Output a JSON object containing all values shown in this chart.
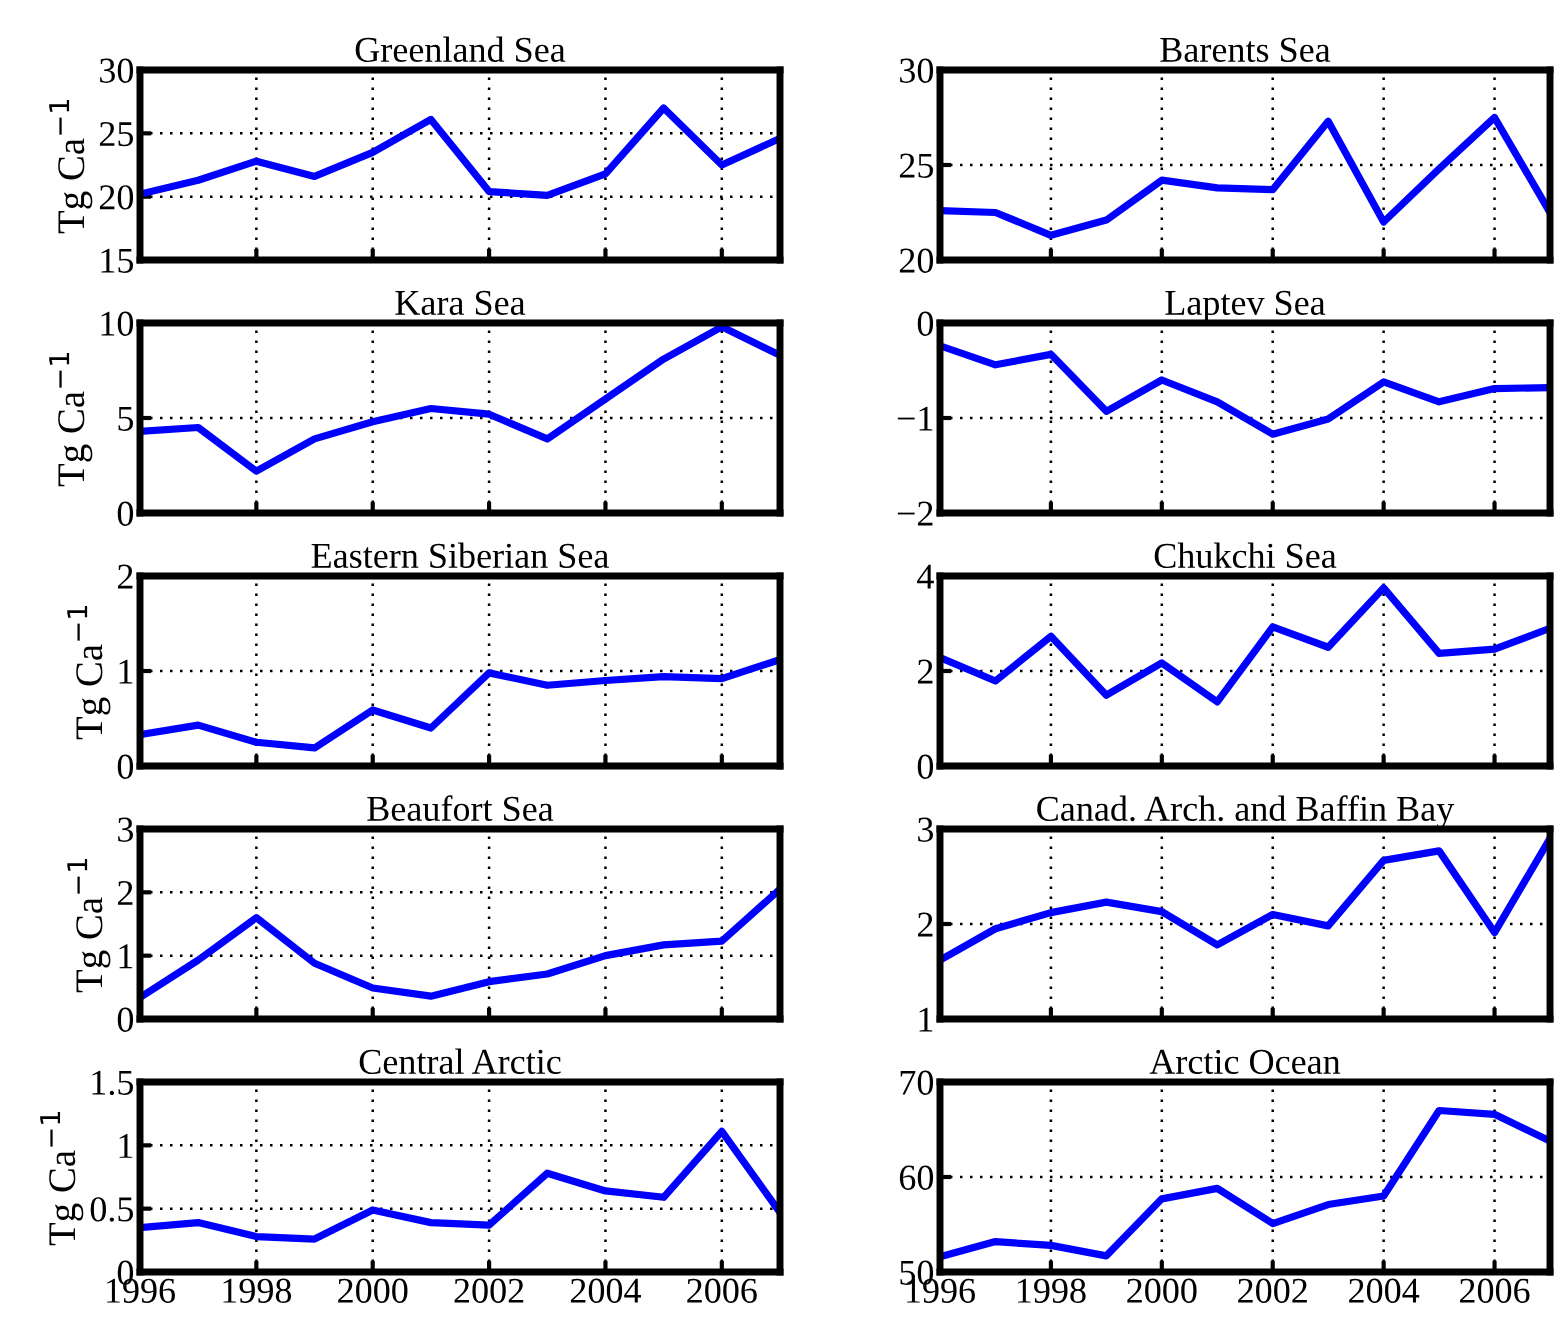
{
  "chart_data": [
    {
      "type": "line",
      "title": "Greenland Sea",
      "ylabel": "Tg Ca$^{−1}$",
      "x": [
        1996,
        1997,
        1998,
        1999,
        2000,
        2001,
        2002,
        2003,
        2004,
        2005,
        2006,
        2007
      ],
      "series": [
        {
          "color": "#0000ff",
          "values": [
            20.2,
            21.3,
            22.8,
            21.6,
            23.5,
            26.1,
            20.4,
            20.1,
            21.8,
            27.0,
            22.5,
            24.6
          ]
        }
      ],
      "xlim": [
        1996,
        2007
      ],
      "xticks": [
        1996,
        1998,
        2000,
        2002,
        2004,
        2006
      ],
      "ylim": [
        15,
        30
      ],
      "yticks": [
        15,
        20,
        25,
        30
      ],
      "grid": true,
      "tick_labels": "y",
      "line_style": "solid",
      "marker": "none"
    },
    {
      "type": "line",
      "title": "Barents Sea",
      "x": [
        1996,
        1997,
        1998,
        1999,
        2000,
        2001,
        2002,
        2003,
        2004,
        2005,
        2006,
        2007
      ],
      "series": [
        {
          "color": "#0000ff",
          "values": [
            22.6,
            22.5,
            21.3,
            22.1,
            24.2,
            23.8,
            23.7,
            27.3,
            22.0,
            24.8,
            27.5,
            22.5
          ]
        }
      ],
      "xlim": [
        1996,
        2007
      ],
      "xticks": [
        1996,
        1998,
        2000,
        2002,
        2004,
        2006
      ],
      "ylim": [
        20,
        30
      ],
      "yticks": [
        20,
        25,
        30
      ],
      "grid": true,
      "tick_labels": "y",
      "line_style": "solid",
      "marker": "none"
    },
    {
      "type": "line",
      "title": "Kara Sea",
      "ylabel": "Tg Ca$^{−1}$",
      "x": [
        1996,
        1997,
        1998,
        1999,
        2000,
        2001,
        2002,
        2003,
        2004,
        2005,
        2006,
        2007
      ],
      "series": [
        {
          "color": "#0000ff",
          "values": [
            4.3,
            4.5,
            2.2,
            3.9,
            4.8,
            5.5,
            5.2,
            3.9,
            6.0,
            8.1,
            9.8,
            8.3
          ]
        }
      ],
      "xlim": [
        1996,
        2007
      ],
      "xticks": [
        1996,
        1998,
        2000,
        2002,
        2004,
        2006
      ],
      "ylim": [
        0,
        10
      ],
      "yticks": [
        0,
        5,
        10
      ],
      "grid": true,
      "tick_labels": "y",
      "line_style": "solid",
      "marker": "none"
    },
    {
      "type": "line",
      "title": "Laptev Sea",
      "x": [
        1996,
        1997,
        1998,
        1999,
        2000,
        2001,
        2002,
        2003,
        2004,
        2005,
        2006,
        2007
      ],
      "series": [
        {
          "color": "#0000ff",
          "values": [
            -0.24,
            -0.44,
            -0.33,
            -0.93,
            -0.6,
            -0.83,
            -1.17,
            -1.01,
            -0.62,
            -0.83,
            -0.69,
            -0.68
          ]
        }
      ],
      "xlim": [
        1996,
        2007
      ],
      "xticks": [
        1996,
        1998,
        2000,
        2002,
        2004,
        2006
      ],
      "ylim": [
        -2,
        0
      ],
      "yticks": [
        {
          "value": -2,
          "label": "−2"
        },
        {
          "value": -1,
          "label": "−1"
        },
        0
      ],
      "grid": true,
      "tick_labels": "y",
      "line_style": "solid",
      "marker": "none"
    },
    {
      "type": "line",
      "title": "Eastern Siberian Sea",
      "ylabel": "Tg Ca$^{−1}$",
      "x": [
        1996,
        1997,
        1998,
        1999,
        2000,
        2001,
        2002,
        2003,
        2004,
        2005,
        2006,
        2007
      ],
      "series": [
        {
          "color": "#0000ff",
          "values": [
            0.33,
            0.43,
            0.25,
            0.19,
            0.59,
            0.4,
            0.98,
            0.85,
            0.9,
            0.94,
            0.92,
            1.12
          ]
        }
      ],
      "xlim": [
        1996,
        2007
      ],
      "xticks": [
        1996,
        1998,
        2000,
        2002,
        2004,
        2006
      ],
      "ylim": [
        0,
        2
      ],
      "yticks": [
        0,
        1,
        2
      ],
      "grid": true,
      "tick_labels": "y",
      "line_style": "solid",
      "marker": "none"
    },
    {
      "type": "line",
      "title": "Chukchi Sea",
      "x": [
        1996,
        1997,
        1998,
        1999,
        2000,
        2001,
        2002,
        2003,
        2004,
        2005,
        2006,
        2007
      ],
      "series": [
        {
          "color": "#0000ff",
          "values": [
            2.28,
            1.79,
            2.73,
            1.49,
            2.17,
            1.35,
            2.93,
            2.5,
            3.75,
            2.37,
            2.46,
            2.9
          ]
        }
      ],
      "xlim": [
        1996,
        2007
      ],
      "xticks": [
        1996,
        1998,
        2000,
        2002,
        2004,
        2006
      ],
      "ylim": [
        0,
        4
      ],
      "yticks": [
        0,
        2,
        4
      ],
      "grid": true,
      "tick_labels": "y",
      "line_style": "solid",
      "marker": "none"
    },
    {
      "type": "line",
      "title": "Beaufort Sea",
      "ylabel": "Tg Ca$^{−1}$",
      "x": [
        1996,
        1997,
        1998,
        1999,
        2000,
        2001,
        2002,
        2003,
        2004,
        2005,
        2006,
        2007
      ],
      "series": [
        {
          "color": "#0000ff",
          "values": [
            0.34,
            0.93,
            1.6,
            0.88,
            0.49,
            0.36,
            0.59,
            0.71,
            1.0,
            1.17,
            1.23,
            2.05
          ]
        }
      ],
      "xlim": [
        1996,
        2007
      ],
      "xticks": [
        1996,
        1998,
        2000,
        2002,
        2004,
        2006
      ],
      "ylim": [
        0,
        3
      ],
      "yticks": [
        0,
        1,
        2,
        3
      ],
      "grid": true,
      "tick_labels": "y",
      "line_style": "solid",
      "marker": "none"
    },
    {
      "type": "line",
      "title": "Canad. Arch. and Baffin Bay",
      "x": [
        1996,
        1997,
        1998,
        1999,
        2000,
        2001,
        2002,
        2003,
        2004,
        2005,
        2006,
        2007
      ],
      "series": [
        {
          "color": "#0000ff",
          "values": [
            1.62,
            1.95,
            2.12,
            2.23,
            2.13,
            1.78,
            2.1,
            1.98,
            2.67,
            2.77,
            1.91,
            2.9
          ]
        }
      ],
      "xlim": [
        1996,
        2007
      ],
      "xticks": [
        1996,
        1998,
        2000,
        2002,
        2004,
        2006
      ],
      "ylim": [
        1,
        3
      ],
      "yticks": [
        1,
        2,
        3
      ],
      "grid": true,
      "tick_labels": "y",
      "line_style": "solid",
      "marker": "none"
    },
    {
      "type": "line",
      "title": "Central Arctic",
      "ylabel": "Tg Ca$^{−1}$",
      "x": [
        1996,
        1997,
        1998,
        1999,
        2000,
        2001,
        2002,
        2003,
        2004,
        2005,
        2006,
        2007
      ],
      "series": [
        {
          "color": "#0000ff",
          "values": [
            0.35,
            0.39,
            0.28,
            0.26,
            0.49,
            0.39,
            0.37,
            0.78,
            0.64,
            0.59,
            1.11,
            0.47
          ]
        }
      ],
      "xlim": [
        1996,
        2007
      ],
      "xticks": [
        1996,
        1998,
        2000,
        2002,
        2004,
        2006
      ],
      "ylim": [
        0,
        1.5
      ],
      "yticks": [
        0,
        0.5,
        1,
        1.5
      ],
      "grid": true,
      "line_style": "solid",
      "marker": "none"
    },
    {
      "type": "line",
      "title": "Arctic Ocean",
      "x": [
        1996,
        1997,
        1998,
        1999,
        2000,
        2001,
        2002,
        2003,
        2004,
        2005,
        2006,
        2007
      ],
      "series": [
        {
          "color": "#0000ff",
          "values": [
            51.6,
            53.2,
            52.8,
            51.7,
            57.7,
            58.8,
            55.1,
            57.1,
            58.0,
            67.0,
            66.6,
            63.8
          ]
        }
      ],
      "xlim": [
        1996,
        2007
      ],
      "xticks": [
        1996,
        1998,
        2000,
        2002,
        2004,
        2006
      ],
      "ylim": [
        50,
        70
      ],
      "yticks": [
        50,
        60,
        70
      ],
      "grid": true,
      "line_style": "solid",
      "marker": "none"
    }
  ]
}
